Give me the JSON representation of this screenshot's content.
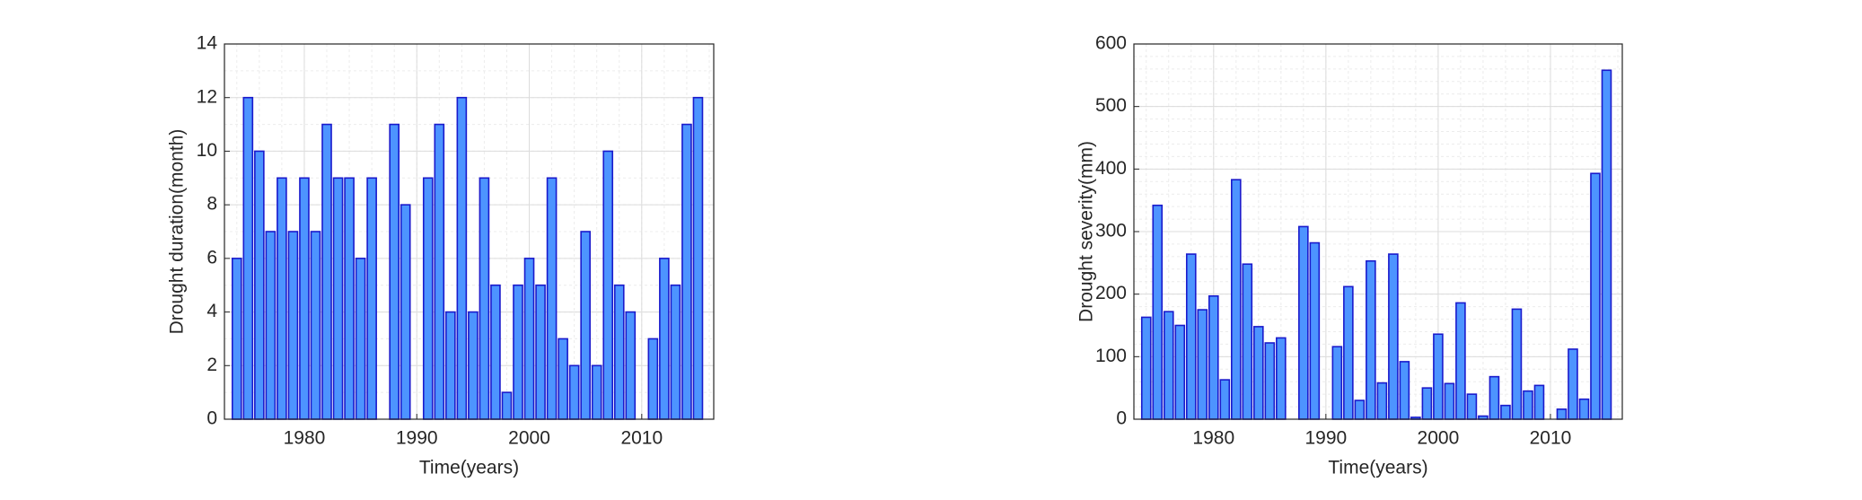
{
  "chart_data": [
    {
      "type": "bar",
      "xlabel": "Time(years)",
      "ylabel": "Drought duration(month)",
      "x": [
        1974,
        1975,
        1976,
        1977,
        1978,
        1979,
        1980,
        1981,
        1982,
        1983,
        1984,
        1985,
        1986,
        1987,
        1988,
        1989,
        1990,
        1991,
        1992,
        1993,
        1994,
        1995,
        1996,
        1997,
        1998,
        1999,
        2000,
        2001,
        2002,
        2003,
        2004,
        2005,
        2006,
        2007,
        2008,
        2009,
        2010,
        2011,
        2012,
        2013,
        2014,
        2015
      ],
      "values": [
        6,
        12,
        10,
        7,
        9,
        7,
        9,
        7,
        11,
        9,
        9,
        6,
        9,
        0,
        11,
        8,
        0,
        9,
        11,
        4,
        12,
        4,
        9,
        5,
        1,
        5,
        6,
        5,
        9,
        3,
        2,
        7,
        2,
        10,
        5,
        4,
        0,
        3,
        6,
        5,
        11,
        12
      ],
      "color": "#4d94ff",
      "edgecolor": "#1a1acc",
      "xlim": [
        1972.9,
        2016.4
      ],
      "xticks": [
        1980,
        1990,
        2000,
        2010
      ],
      "ylim": [
        0,
        14
      ],
      "yticks": [
        0,
        2,
        4,
        6,
        8,
        10,
        12,
        14
      ],
      "grid": true
    },
    {
      "type": "bar",
      "xlabel": "Time(years)",
      "ylabel": "Drought severity(mm)",
      "x": [
        1974,
        1975,
        1976,
        1977,
        1978,
        1979,
        1980,
        1981,
        1982,
        1983,
        1984,
        1985,
        1986,
        1987,
        1988,
        1989,
        1990,
        1991,
        1992,
        1993,
        1994,
        1995,
        1996,
        1997,
        1998,
        1999,
        2000,
        2001,
        2002,
        2003,
        2004,
        2005,
        2006,
        2007,
        2008,
        2009,
        2010,
        2011,
        2012,
        2013,
        2014,
        2015
      ],
      "values": [
        163,
        342,
        172,
        150,
        264,
        175,
        197,
        63,
        383,
        248,
        148,
        122,
        130,
        0,
        308,
        282,
        0,
        116,
        212,
        30,
        253,
        58,
        264,
        92,
        3,
        50,
        136,
        57,
        186,
        40,
        5,
        68,
        22,
        176,
        45,
        54,
        0,
        16,
        112,
        32,
        393,
        558
      ],
      "color": "#4d94ff",
      "edgecolor": "#1a1acc",
      "xlim": [
        1972.9,
        2016.4
      ],
      "xticks": [
        1980,
        1990,
        2000,
        2010
      ],
      "ylim": [
        0,
        600
      ],
      "yticks": [
        0,
        100,
        200,
        300,
        400,
        500,
        600
      ],
      "grid": true
    }
  ]
}
